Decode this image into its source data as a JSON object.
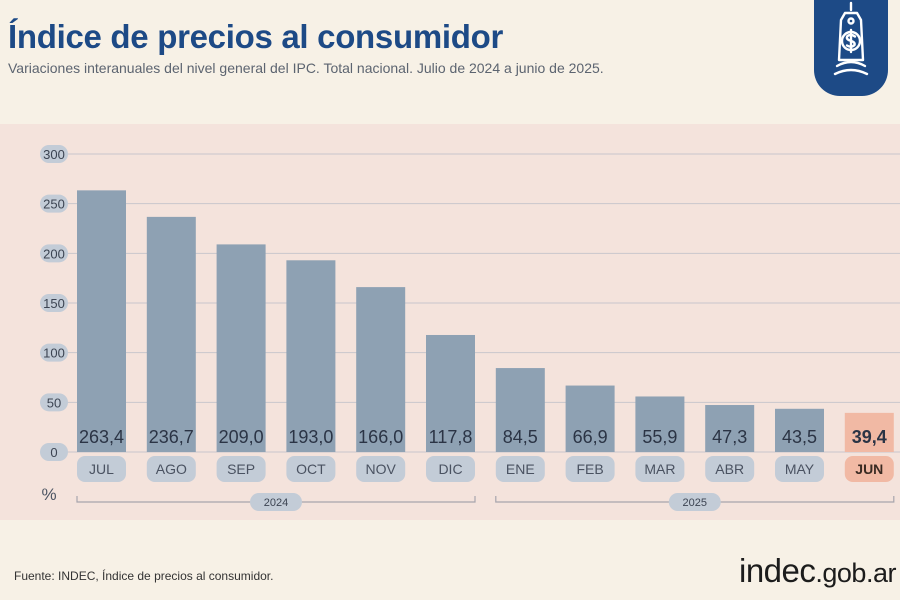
{
  "header": {
    "title": "Índice de precios al consumidor",
    "subtitle": "Variaciones interanuales del nivel general del IPC. Total nacional. Julio de 2024 a junio de 2025."
  },
  "badge": {
    "icon": "price-tag-dollar-icon"
  },
  "footer": {
    "source": "Fuente: INDEC, Índice de precios al consumidor.",
    "logo_main": "indec",
    "logo_suffix": ".gob.ar"
  },
  "colors": {
    "title": "#1d4a86",
    "bar": "#8ea1b3",
    "bar_highlight": "#f1b9a4",
    "pill": "#c3ccd7",
    "value_text": "#2b3445",
    "panel": "#f4e3dc",
    "background": "#f7f1e6"
  },
  "chart_data": {
    "type": "bar",
    "categories": [
      "JUL",
      "AGO",
      "SEP",
      "OCT",
      "NOV",
      "DIC",
      "ENE",
      "FEB",
      "MAR",
      "ABR",
      "MAY",
      "JUN"
    ],
    "values": [
      263.4,
      236.7,
      209.0,
      193.0,
      166.0,
      117.8,
      84.5,
      66.9,
      55.9,
      47.3,
      43.5,
      39.4
    ],
    "value_labels": [
      "263,4",
      "236,7",
      "209,0",
      "193,0",
      "166,0",
      "117,8",
      "84,5",
      "66,9",
      "55,9",
      "47,3",
      "43,5",
      "39,4"
    ],
    "highlight_index": 11,
    "yticks": [
      "0",
      "50",
      "100",
      "150",
      "200",
      "250",
      "300"
    ],
    "ylim": [
      0,
      300
    ],
    "ylabel": "%",
    "years": [
      {
        "label": "2024",
        "from": 0,
        "to": 5
      },
      {
        "label": "2025",
        "from": 6,
        "to": 11
      }
    ],
    "grid": true
  }
}
